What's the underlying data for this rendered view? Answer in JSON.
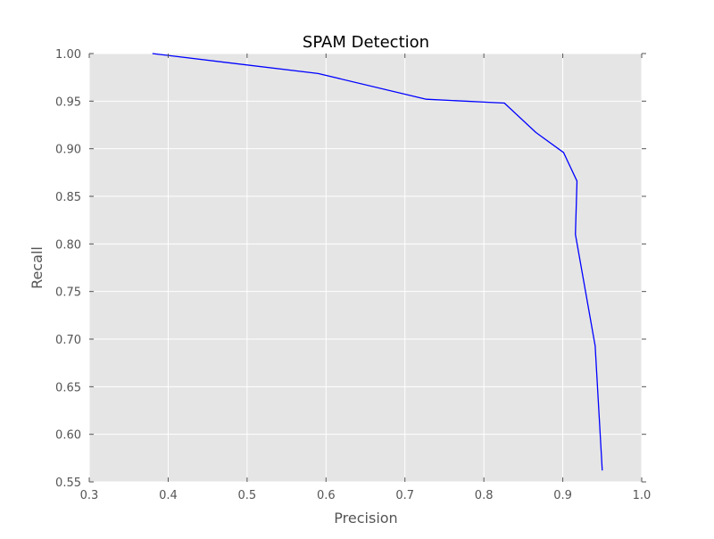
{
  "chart_data": {
    "type": "line",
    "title": "SPAM Detection",
    "xlabel": "Precision",
    "ylabel": "Recall",
    "xlim": [
      0.3,
      1.0
    ],
    "ylim": [
      0.55,
      1.0
    ],
    "xticks": [
      "0.3",
      "0.4",
      "0.5",
      "0.6",
      "0.7",
      "0.8",
      "0.9",
      "1.0"
    ],
    "yticks": [
      "0.55",
      "0.60",
      "0.65",
      "0.70",
      "0.75",
      "0.80",
      "0.85",
      "0.90",
      "0.95",
      "1.00"
    ],
    "grid": true,
    "legend": "none",
    "colors": {
      "background": "#e5e5e5",
      "grid": "#ffffff",
      "line": "#0000ff",
      "tick": "#555555"
    },
    "series": [
      {
        "x": [
          0.38,
          0.4,
          0.59,
          0.727,
          0.826,
          0.866,
          0.901,
          0.918,
          0.916,
          0.941,
          0.95
        ],
        "y": [
          1.0,
          0.998,
          0.979,
          0.952,
          0.948,
          0.917,
          0.896,
          0.866,
          0.81,
          0.693,
          0.562
        ]
      }
    ]
  }
}
